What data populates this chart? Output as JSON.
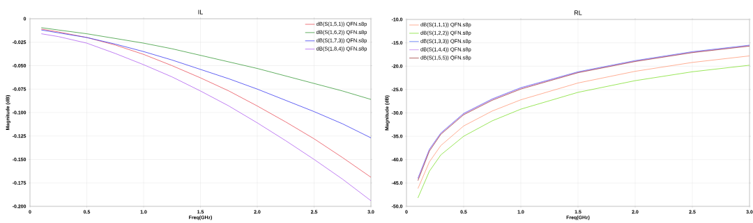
{
  "chart_data": [
    {
      "type": "line",
      "title": "IL",
      "xlabel": "Freq(GHz)",
      "ylabel": "Magnitude (dB)",
      "grid": true,
      "legend": "top right",
      "xlim": [
        0,
        3
      ],
      "ylim": [
        -0.2,
        0
      ],
      "xticks": [
        0,
        {
          "value": 0.5,
          "label": "0.5"
        },
        {
          "value": 1,
          "label": "1.0"
        },
        {
          "value": 1.5,
          "label": "1.5"
        },
        {
          "value": 2,
          "label": "2.0"
        },
        {
          "value": 2.5,
          "label": "2.5"
        },
        {
          "value": 3,
          "label": "3.0"
        }
      ],
      "yticks": [
        0,
        {
          "value": -0.025,
          "label": "-0.025"
        },
        {
          "value": -0.05,
          "label": "-0.050"
        },
        {
          "value": -0.075,
          "label": "-0.075"
        },
        {
          "value": -0.1,
          "label": "-0.100"
        },
        {
          "value": -0.125,
          "label": "-0.125"
        },
        {
          "value": -0.15,
          "label": "-0.150"
        },
        {
          "value": -0.175,
          "label": "-0.175"
        },
        {
          "value": -0.2,
          "label": "-0.200"
        }
      ],
      "x": [
        0.1,
        0.25,
        0.5,
        0.75,
        1.0,
        1.25,
        1.5,
        1.75,
        2.0,
        2.25,
        2.5,
        2.75,
        3.0
      ],
      "series": [
        {
          "name": "dB(S(1,5,1)) QFN.s8p",
          "color": "#e8505a",
          "values": [
            -0.011,
            -0.014,
            -0.02,
            -0.028,
            -0.038,
            -0.05,
            -0.063,
            -0.077,
            -0.093,
            -0.11,
            -0.128,
            -0.148,
            -0.169
          ]
        },
        {
          "name": "dB(S(1,6,2)) QFN.s8p",
          "color": "#3a9a3a",
          "values": [
            -0.0095,
            -0.012,
            -0.016,
            -0.021,
            -0.026,
            -0.032,
            -0.039,
            -0.046,
            -0.053,
            -0.061,
            -0.069,
            -0.077,
            -0.086
          ]
        },
        {
          "name": "dB(S(1,7,3)) QFN.s8p",
          "color": "#3a3af0",
          "values": [
            -0.012,
            -0.015,
            -0.02,
            -0.027,
            -0.035,
            -0.044,
            -0.054,
            -0.064,
            -0.075,
            -0.087,
            -0.099,
            -0.112,
            -0.127
          ]
        },
        {
          "name": "dB(S(1,8,4)) QFN.s8p",
          "color": "#b060f0",
          "values": [
            -0.016,
            -0.019,
            -0.026,
            -0.037,
            -0.049,
            -0.062,
            -0.077,
            -0.093,
            -0.111,
            -0.13,
            -0.15,
            -0.171,
            -0.194
          ]
        }
      ]
    },
    {
      "type": "line",
      "title": "RL",
      "xlabel": "Freq(GHz)",
      "ylabel": "Magnitude (dB)",
      "grid": true,
      "legend": "top left",
      "xlim": [
        0,
        3
      ],
      "ylim": [
        -50,
        -10
      ],
      "xticks": [
        0,
        {
          "value": 0.5,
          "label": "0.5"
        },
        {
          "value": 1,
          "label": "1.0"
        },
        {
          "value": 1.5,
          "label": "1.5"
        },
        {
          "value": 2,
          "label": "2.0"
        },
        {
          "value": 2.5,
          "label": "2.5"
        },
        {
          "value": 3,
          "label": "3.0"
        }
      ],
      "yticks": [
        {
          "value": -10,
          "label": "-10.0"
        },
        {
          "value": -15,
          "label": "-15.0"
        },
        {
          "value": -20,
          "label": "-20.0"
        },
        {
          "value": -25,
          "label": "-25.0"
        },
        {
          "value": -30,
          "label": "-30.0"
        },
        {
          "value": -35,
          "label": "-35.0"
        },
        {
          "value": -40,
          "label": "-40.0"
        },
        {
          "value": -45,
          "label": "-45.0"
        },
        {
          "value": -50,
          "label": "-50.0"
        }
      ],
      "x": [
        0.1,
        0.2,
        0.3,
        0.5,
        0.75,
        1.0,
        1.5,
        2.0,
        2.5,
        3.0
      ],
      "series": [
        {
          "name": "dB(S(1,1,1)) QFN.s8p",
          "color": "#ff9a7a",
          "values": [
            -46.2,
            -40.5,
            -37.0,
            -32.8,
            -29.6,
            -27.2,
            -23.6,
            -21.1,
            -19.2,
            -17.8
          ]
        },
        {
          "name": "dB(S(1,2,2)) QFN.s8p",
          "color": "#80e030",
          "values": [
            -48.2,
            -42.5,
            -39.0,
            -35.0,
            -31.7,
            -29.2,
            -25.6,
            -23.1,
            -21.2,
            -19.8
          ]
        },
        {
          "name": "dB(S(1,3,3)) QFN.s8p",
          "color": "#5070f0",
          "values": [
            -44.0,
            -37.8,
            -34.3,
            -30.1,
            -27.0,
            -24.6,
            -21.2,
            -18.8,
            -16.9,
            -15.5
          ]
        },
        {
          "name": "dB(S(1,4,4)) QFN.s8p",
          "color": "#c080f0",
          "values": [
            -44.1,
            -37.9,
            -34.4,
            -30.2,
            -27.1,
            -24.7,
            -21.3,
            -18.9,
            -17.0,
            -15.6
          ]
        },
        {
          "name": "dB(S(1,5,5)) QFN.s8p",
          "color": "#a04040",
          "values": [
            -44.5,
            -38.2,
            -34.6,
            -30.4,
            -27.3,
            -24.9,
            -21.4,
            -19.0,
            -17.1,
            -15.7
          ]
        }
      ]
    }
  ]
}
